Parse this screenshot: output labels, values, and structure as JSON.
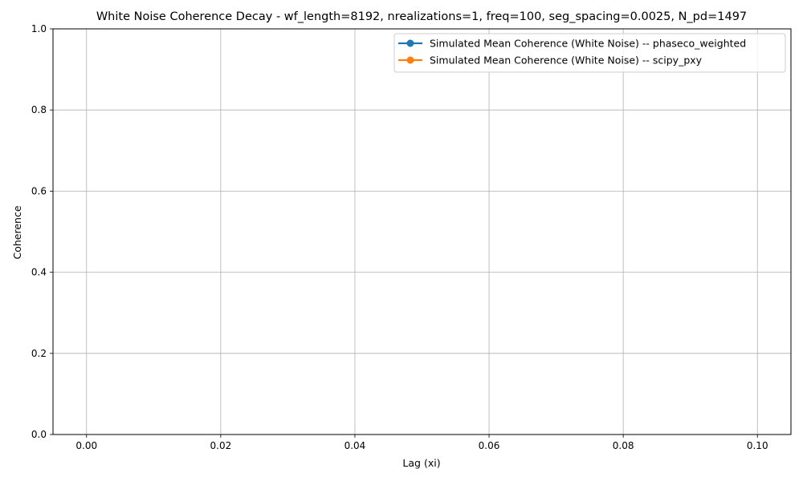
{
  "chart_data": {
    "type": "line",
    "title": "White Noise Coherence Decay - wf_length=8192, nrealizations=1, freq=100, seg_spacing=0.0025, N_pd=1497",
    "xlabel": "Lag (xi)",
    "ylabel": "Coherence",
    "xlim": [
      -0.005,
      0.105
    ],
    "ylim": [
      0.0,
      1.0
    ],
    "x_ticks": [
      0.0,
      0.02,
      0.04,
      0.06,
      0.08,
      0.1
    ],
    "x_tick_labels": [
      "0.00",
      "0.02",
      "0.04",
      "0.06",
      "0.08",
      "0.10"
    ],
    "y_ticks": [
      0.0,
      0.2,
      0.4,
      0.6,
      0.8,
      1.0
    ],
    "y_tick_labels": [
      "0.0",
      "0.2",
      "0.4",
      "0.6",
      "0.8",
      "1.0"
    ],
    "grid": true,
    "legend_position": "upper-right",
    "series": [
      {
        "name": "Simulated Mean Coherence (White Noise) -- phaseco_weighted",
        "color": "#1f77b4",
        "x": [],
        "y": []
      },
      {
        "name": "Simulated Mean Coherence (White Noise) -- scipy_pxy",
        "color": "#ff7f0e",
        "x": [],
        "y": []
      }
    ]
  }
}
